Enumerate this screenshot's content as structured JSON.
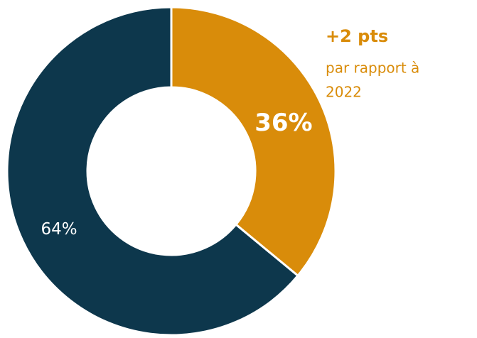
{
  "chart_data": {
    "type": "donut",
    "values": [
      36,
      64
    ],
    "value_labels": [
      "36%",
      "64%"
    ],
    "colors": [
      "#d98c0a",
      "#0d374c"
    ],
    "annotation": {
      "title": "+2 pts",
      "lines": [
        "par rapport à",
        "2022"
      ]
    }
  }
}
